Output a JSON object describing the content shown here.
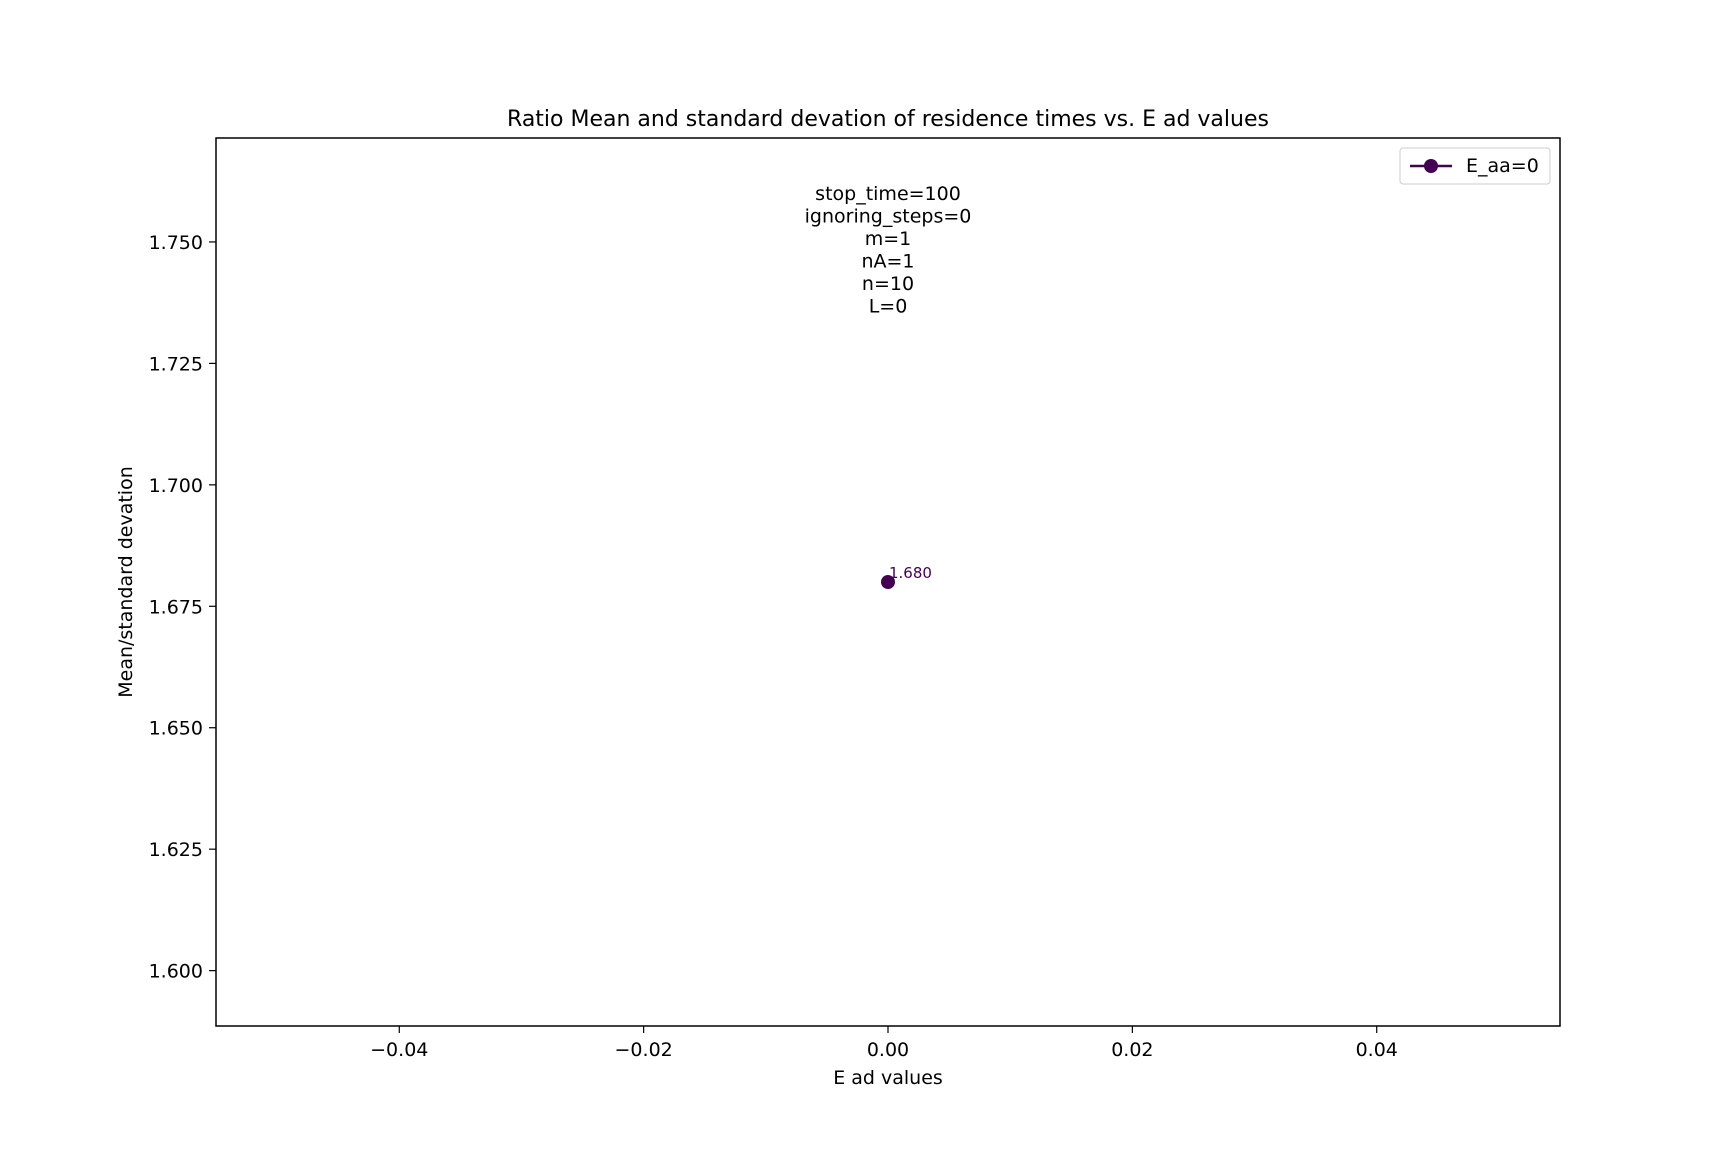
{
  "chart_data": {
    "type": "line",
    "title": "Ratio Mean and standard devation of residence times vs. E ad values",
    "xlabel": "E ad values",
    "ylabel": "Mean/standard devation",
    "xlim": [
      -0.055,
      0.055
    ],
    "ylim": [
      1.5886,
      1.7714
    ],
    "xticks": [
      -0.04,
      -0.02,
      0.0,
      0.02,
      0.04
    ],
    "xtick_labels": [
      "−0.04",
      "−0.02",
      "0.00",
      "0.02",
      "0.04"
    ],
    "yticks": [
      1.6,
      1.625,
      1.65,
      1.675,
      1.7,
      1.725,
      1.75
    ],
    "ytick_labels": [
      "1.600",
      "1.625",
      "1.650",
      "1.675",
      "1.700",
      "1.725",
      "1.750"
    ],
    "grid": false,
    "legend_position": "top-right",
    "series": [
      {
        "name": "E_aa=0",
        "color": "#440154",
        "marker": "circle",
        "points": [
          {
            "x": 0.0,
            "y": 1.68,
            "label": "1.680"
          }
        ]
      }
    ],
    "annotation_lines": [
      "stop_time=100",
      "ignoring_steps=0",
      "m=1",
      "nA=1",
      "n=10",
      "L=0"
    ]
  }
}
